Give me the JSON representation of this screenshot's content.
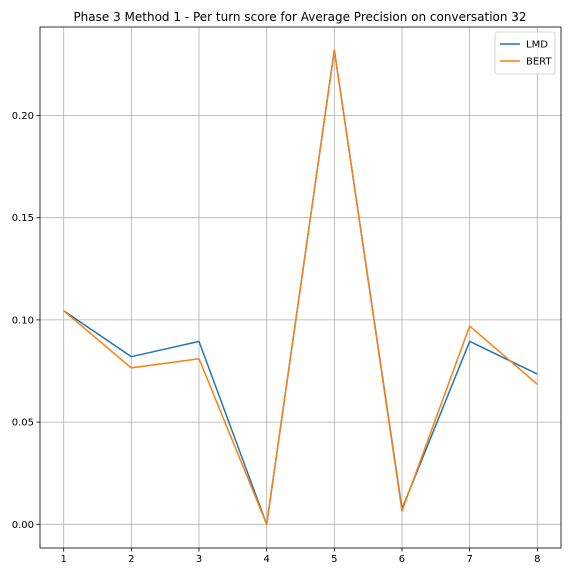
{
  "chart_data": {
    "type": "line",
    "title": "Phase 3 Method 1 - Per turn score for Average Precision on conversation 32",
    "xlabel": "",
    "ylabel": "",
    "x": [
      1,
      2,
      3,
      4,
      5,
      6,
      7,
      8
    ],
    "xticks": [
      "1",
      "2",
      "3",
      "4",
      "5",
      "6",
      "7",
      "8"
    ],
    "yticks": [
      "0.00",
      "0.05",
      "0.10",
      "0.15",
      "0.20"
    ],
    "xlim": [
      0.65,
      8.35
    ],
    "ylim": [
      -0.0116,
      0.2433
    ],
    "grid": true,
    "legend_position": "top-right",
    "series": [
      {
        "name": "LMD",
        "color": "#1f77b4",
        "values": [
          0.1045,
          0.082,
          0.0895,
          0.0,
          0.232,
          0.0075,
          0.0895,
          0.0735
        ]
      },
      {
        "name": "BERT",
        "color": "#ff7f0e",
        "values": [
          0.1045,
          0.0765,
          0.081,
          0.0,
          0.232,
          0.0065,
          0.097,
          0.0685
        ]
      }
    ]
  }
}
